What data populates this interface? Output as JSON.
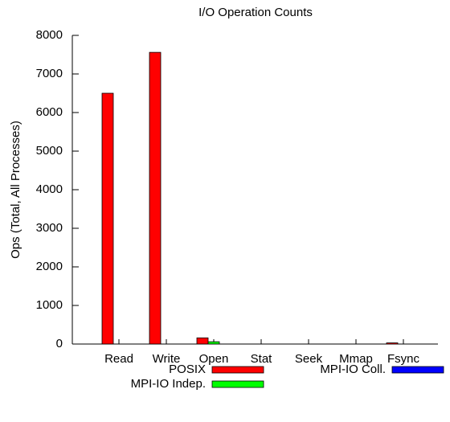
{
  "chart_data": {
    "type": "bar",
    "title": "I/O Operation Counts",
    "y_label": "Ops (Total, All Processes)",
    "categories": [
      "Read",
      "Write",
      "Open",
      "Stat",
      "Seek",
      "Mmap",
      "Fsync"
    ],
    "series": [
      {
        "name": "POSIX",
        "color": "#ff0000",
        "values": [
          6500,
          7560,
          160,
          0,
          0,
          0,
          30
        ]
      },
      {
        "name": "MPI-IO Indep.",
        "color": "#00ff00",
        "values": [
          0,
          0,
          60,
          0,
          0,
          0,
          0
        ]
      },
      {
        "name": "MPI-IO Coll.",
        "color": "#0000ff",
        "values": [
          0,
          0,
          0,
          0,
          0,
          0,
          0
        ]
      }
    ],
    "ylim": [
      0,
      8000
    ],
    "yticks": [
      0,
      1000,
      2000,
      3000,
      4000,
      5000,
      6000,
      7000,
      8000
    ]
  }
}
